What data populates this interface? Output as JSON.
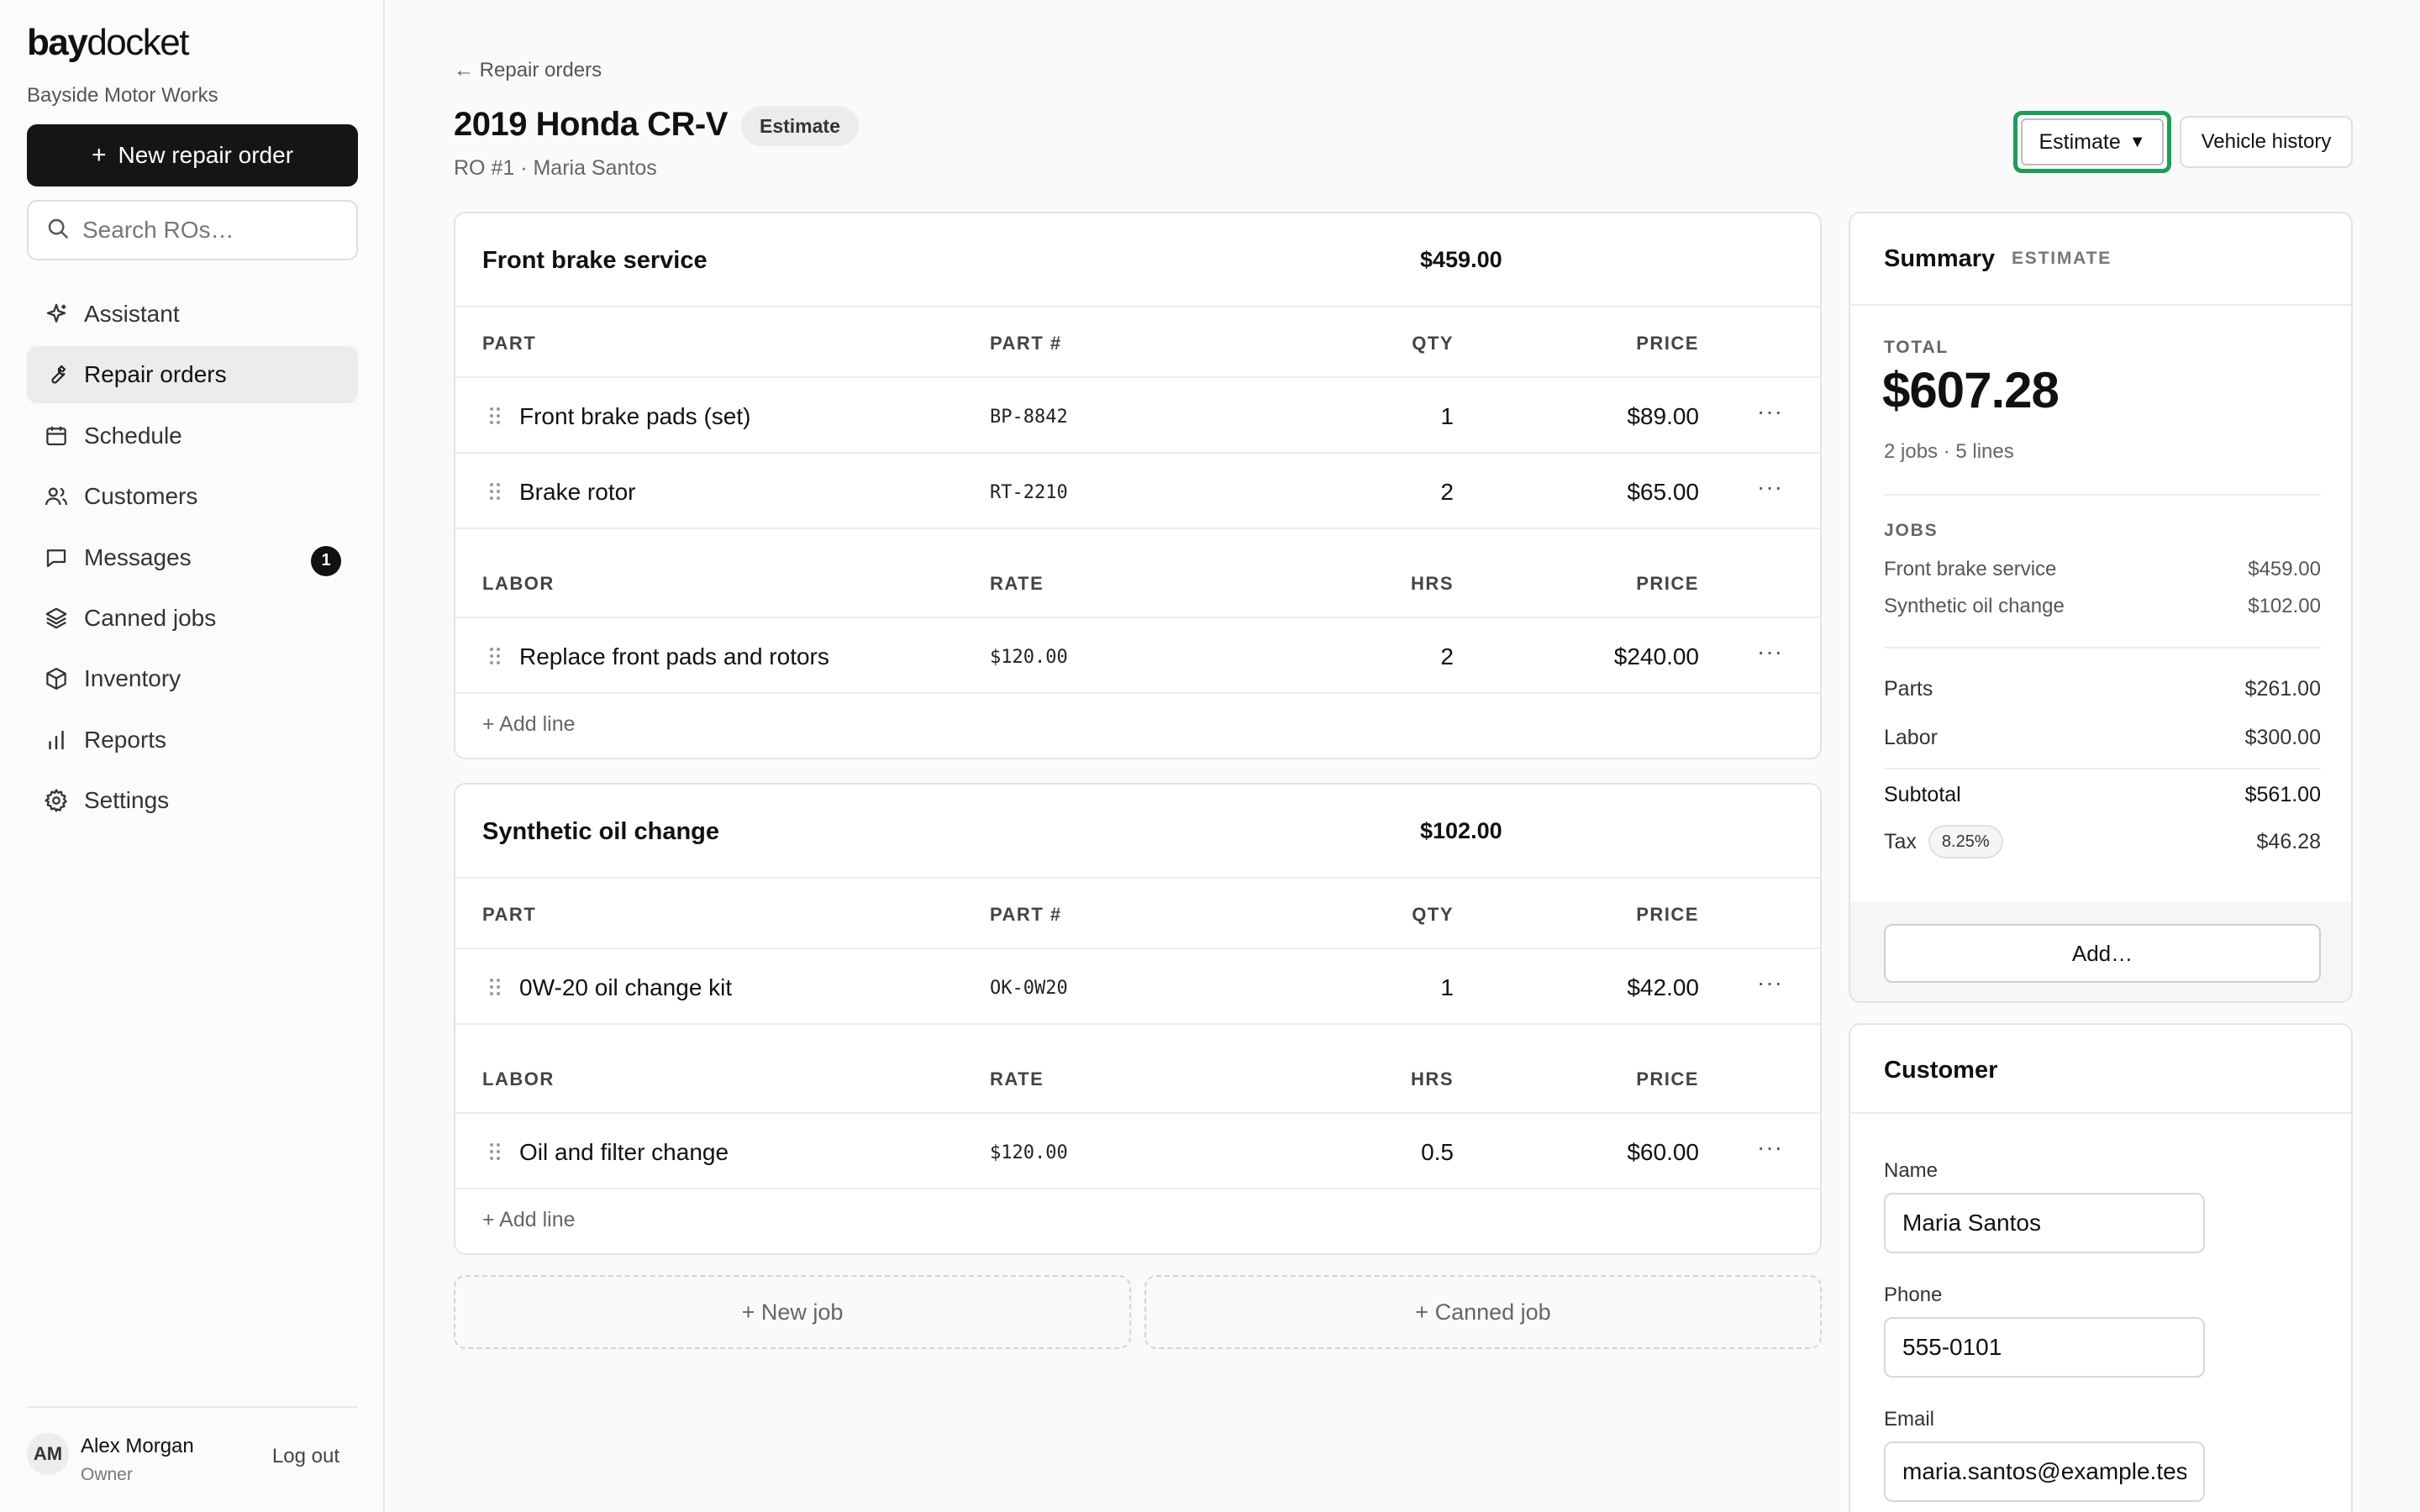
{
  "app": {
    "logo_bold": "bay",
    "logo_light": "docket",
    "shop_name": "Bayside Motor Works",
    "new_ro_label": "New repair order",
    "search_placeholder": "Search ROs…"
  },
  "sidebar": {
    "items": [
      {
        "label": "Assistant",
        "icon": "sparkle-icon",
        "active": false
      },
      {
        "label": "Repair orders",
        "icon": "wrench-icon",
        "active": true
      },
      {
        "label": "Schedule",
        "icon": "calendar-icon",
        "active": false
      },
      {
        "label": "Customers",
        "icon": "users-icon",
        "active": false
      },
      {
        "label": "Messages",
        "icon": "message-icon",
        "active": false,
        "badge": "1"
      },
      {
        "label": "Canned jobs",
        "icon": "layers-icon",
        "active": false
      },
      {
        "label": "Inventory",
        "icon": "box-icon",
        "active": false
      },
      {
        "label": "Reports",
        "icon": "bar-chart-icon",
        "active": false
      },
      {
        "label": "Settings",
        "icon": "gear-icon",
        "active": false
      }
    ]
  },
  "user": {
    "initials": "AM",
    "name": "Alex Morgan",
    "role": "Owner",
    "logout_label": "Log out"
  },
  "header": {
    "back_label": "← Repair orders",
    "title": "2019 Honda CR-V",
    "status_badge": "Estimate",
    "subtitle": "RO #1 · Maria Santos",
    "status_select_value": "Estimate",
    "vehicle_history_label": "Vehicle history"
  },
  "columns": {
    "part": "PART",
    "part_num": "PART #",
    "qty": "QTY",
    "price": "PRICE",
    "labor": "LABOR",
    "rate": "RATE",
    "hrs": "HRS"
  },
  "jobs": [
    {
      "title": "Front brake service",
      "total": "$459.00",
      "parts": [
        {
          "name": "Front brake pads (set)",
          "code": "BP-8842",
          "qty": "1",
          "price": "$89.00"
        },
        {
          "name": "Brake rotor",
          "code": "RT-2210",
          "qty": "2",
          "price": "$65.00"
        }
      ],
      "labor": [
        {
          "name": "Replace front pads and rotors",
          "rate": "$120.00",
          "hrs": "2",
          "price": "$240.00"
        }
      ],
      "add_line_label": "+ Add line"
    },
    {
      "title": "Synthetic oil change",
      "total": "$102.00",
      "parts": [
        {
          "name": "0W-20 oil change kit",
          "code": "OK-0W20",
          "qty": "1",
          "price": "$42.00"
        }
      ],
      "labor": [
        {
          "name": "Oil and filter change",
          "rate": "$120.00",
          "hrs": "0.5",
          "price": "$60.00"
        }
      ],
      "add_line_label": "+ Add line"
    }
  ],
  "actions": {
    "new_job_label": "+ New job",
    "canned_job_label": "+ Canned job"
  },
  "summary": {
    "title": "Summary",
    "tag": "ESTIMATE",
    "total_label": "TOTAL",
    "total": "$607.28",
    "meta": "2 jobs · 5 lines",
    "jobs_label": "JOBS",
    "job_lines": [
      {
        "name": "Front brake service",
        "amount": "$459.00"
      },
      {
        "name": "Synthetic oil change",
        "amount": "$102.00"
      }
    ],
    "parts_label": "Parts",
    "parts": "$261.00",
    "labor_label": "Labor",
    "labor": "$300.00",
    "subtotal_label": "Subtotal",
    "subtotal": "$561.00",
    "tax_label": "Tax",
    "tax_rate": "8.25%",
    "tax": "$46.28",
    "add_label": "Add…"
  },
  "customer": {
    "title": "Customer",
    "name_label": "Name",
    "name": "Maria Santos",
    "phone_label": "Phone",
    "phone": "555-0101",
    "email_label": "Email",
    "email": "maria.santos@example.test"
  }
}
